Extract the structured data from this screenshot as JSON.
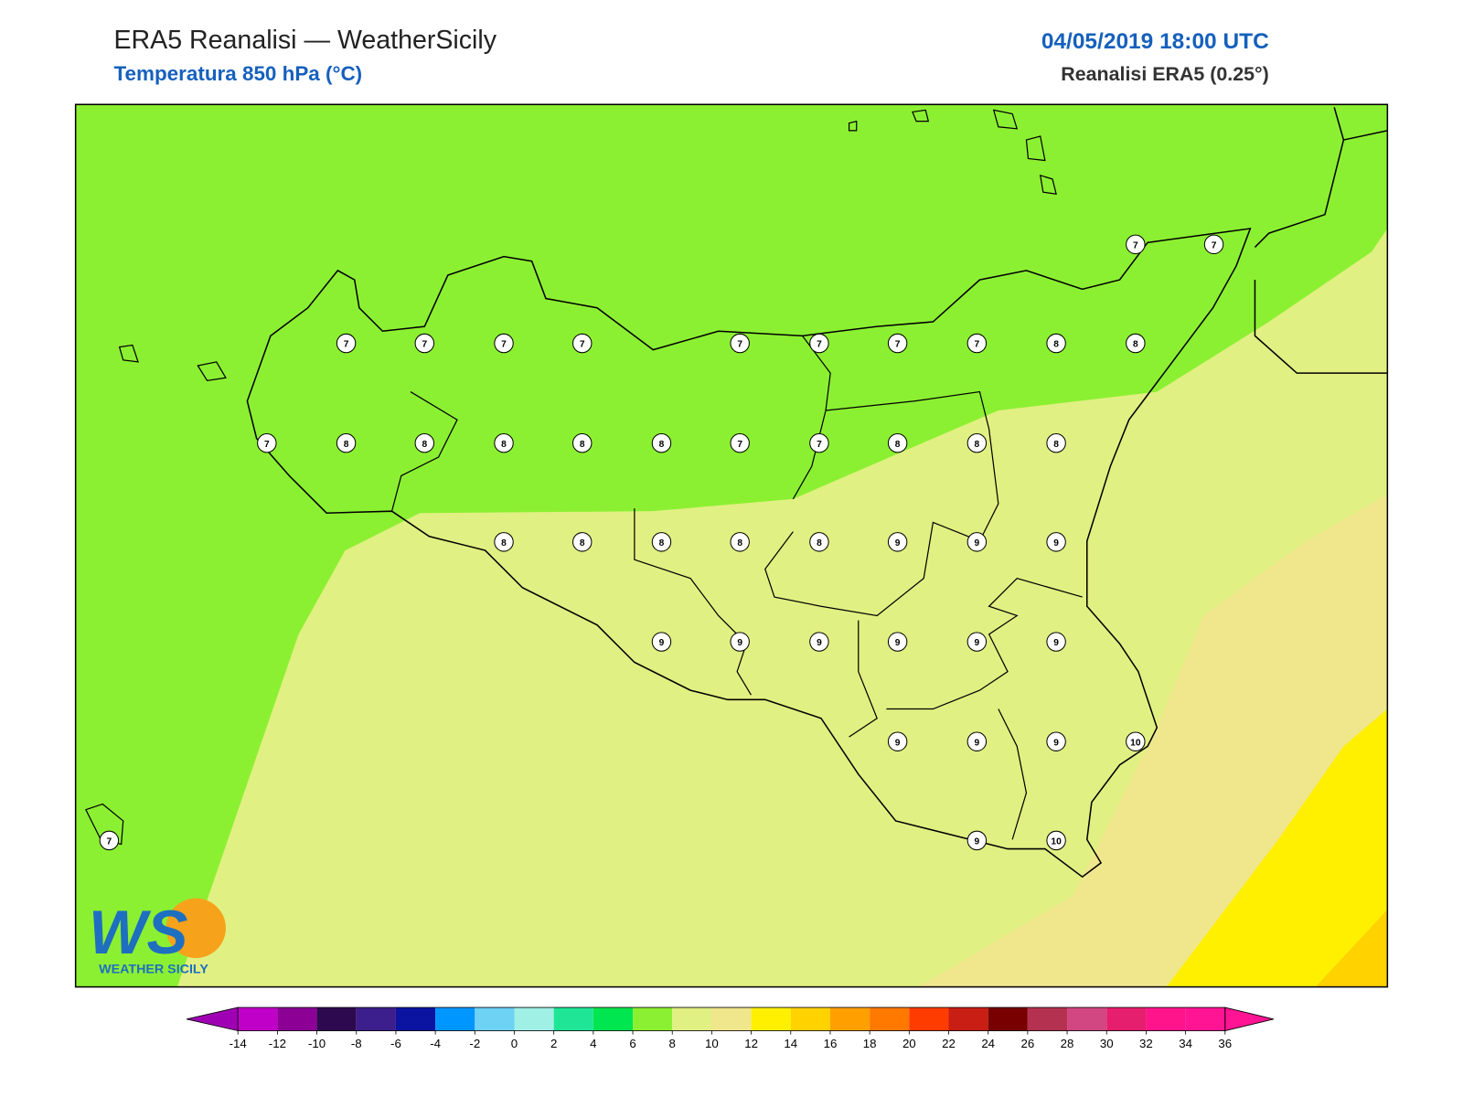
{
  "header": {
    "title": "ERA5 Reanalisi — WeatherSicily",
    "subtitle": "Temperatura 850 hPa (°C)",
    "datetime": "04/05/2019 18:00 UTC",
    "source": "Reanalisi ERA5 (0.25°)"
  },
  "logo": {
    "mark": "WS",
    "text": "WEATHER SICILY"
  },
  "stations": [
    7,
    7,
    7,
    7,
    7,
    7,
    7,
    7,
    7,
    7,
    8,
    8,
    7,
    8,
    8,
    8,
    8,
    8,
    7,
    7,
    8,
    8,
    8,
    8,
    8,
    8,
    8,
    8,
    9,
    9,
    9,
    9,
    9,
    9,
    9,
    9,
    9,
    9,
    9,
    9,
    10,
    9,
    10,
    7
  ],
  "colorbar": {
    "ticks": [
      -14,
      -12,
      -10,
      -8,
      -6,
      -4,
      -2,
      0,
      2,
      4,
      6,
      8,
      10,
      12,
      14,
      16,
      18,
      20,
      22,
      24,
      26,
      28,
      30,
      32,
      34,
      36
    ],
    "colors": [
      "#a000b4",
      "#c000c8",
      "#8c0096",
      "#2d0a50",
      "#3c1e8c",
      "#0a14a0",
      "#0096ff",
      "#6ed2f5",
      "#a0f0e6",
      "#1ee696",
      "#00e650",
      "#8cf032",
      "#e1f082",
      "#f0e68c",
      "#fff000",
      "#ffd200",
      "#ffa000",
      "#ff7800",
      "#ff3c00",
      "#c81e14",
      "#780000",
      "#b43250",
      "#d24682",
      "#e61e6e",
      "#ff148c",
      "#ff1493",
      "#ff1493"
    ]
  }
}
